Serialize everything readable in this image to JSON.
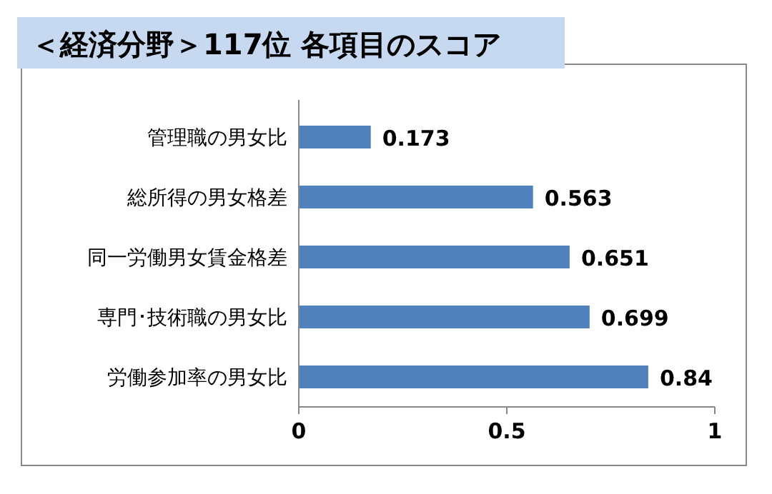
{
  "chart_data": {
    "type": "bar",
    "orientation": "horizontal",
    "title": "＜経済分野＞117位 各項目のスコア",
    "categories": [
      "管理職の男女比",
      "総所得の男女格差",
      "同一労働男女賃金格差",
      "専門･技術職の男女比",
      "労働参加率の男女比"
    ],
    "values": [
      0.173,
      0.563,
      0.651,
      0.699,
      0.84
    ],
    "color": "#4f81bd",
    "xlim": [
      0,
      1
    ],
    "xticks": [
      0,
      0.5,
      1
    ],
    "data_labels": true
  }
}
